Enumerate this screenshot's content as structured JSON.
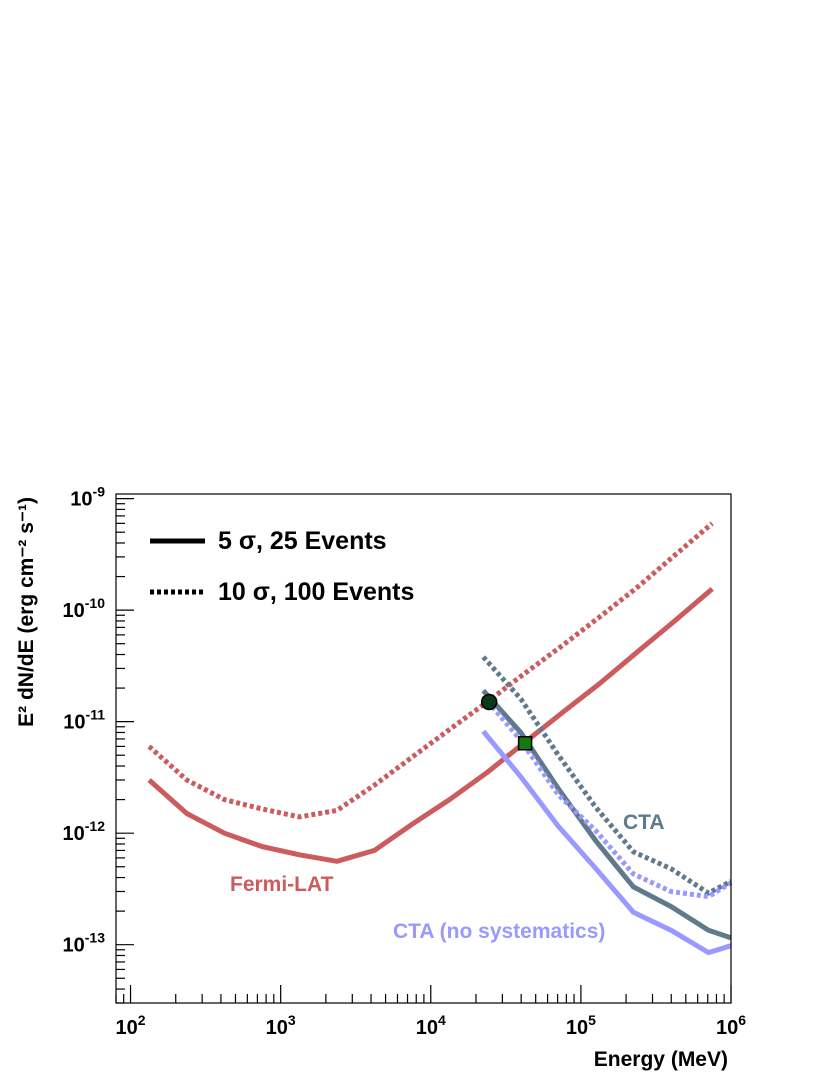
{
  "chart_data": {
    "type": "line",
    "xlabel": "Energy (MeV)",
    "ylabel": "E² dN/dE (erg cm⁻² s⁻¹)",
    "xscale": "log",
    "yscale": "log",
    "xlim": [
      80,
      1000000
    ],
    "ylim": [
      3e-14,
      1.1e-09
    ],
    "x_ticks": [
      {
        "value": 100,
        "base": "10",
        "exp": "2"
      },
      {
        "value": 1000,
        "base": "10",
        "exp": "3"
      },
      {
        "value": 10000,
        "base": "10",
        "exp": "4"
      },
      {
        "value": 100000,
        "base": "10",
        "exp": "5"
      },
      {
        "value": 1000000,
        "base": "10",
        "exp": "6"
      }
    ],
    "y_ticks": [
      {
        "value": 1e-13,
        "base": "10",
        "exp": "-13"
      },
      {
        "value": 1e-12,
        "base": "10",
        "exp": "-12"
      },
      {
        "value": 1e-11,
        "base": "10",
        "exp": "-11"
      },
      {
        "value": 1e-10,
        "base": "10",
        "exp": "-10"
      },
      {
        "value": 1e-09,
        "base": "10",
        "exp": "-9"
      }
    ],
    "grid": false,
    "legend_position": "top-left",
    "legend": [
      {
        "style": "solid",
        "label": "5 σ, 25 Events"
      },
      {
        "style": "dotted",
        "label": "10 σ, 100 Events"
      }
    ],
    "annotations": [
      {
        "text": "Fermi-LAT",
        "color": "#cc5b5e"
      },
      {
        "text": "CTA",
        "color": "#5f7a8c"
      },
      {
        "text": "CTA (no systematics)",
        "color": "#9999ff"
      }
    ],
    "series": [
      {
        "group": "Fermi-LAT",
        "style": "solid",
        "color": "#cc5b5e",
        "x": [
          133,
          237,
          422,
          750,
          1334,
          2371,
          4217,
          7499,
          13335,
          23714,
          42170,
          74989,
          133352,
          237137,
          421696,
          749894
        ],
        "y": [
          3e-12,
          1.5e-12,
          1e-12,
          7.6e-13,
          6.4e-13,
          5.6e-13,
          7e-13,
          1.2e-12,
          2e-12,
          3.5e-12,
          6.5e-12,
          1.2e-11,
          2.2e-11,
          4.2e-11,
          8e-11,
          1.55e-10
        ]
      },
      {
        "group": "Fermi-LAT",
        "style": "dotted",
        "color": "#cc5b5e",
        "x": [
          133,
          237,
          422,
          750,
          1334,
          2371,
          4217,
          7499,
          13335,
          23714,
          42170,
          74989,
          133352,
          237137,
          421696,
          749894
        ],
        "y": [
          6e-12,
          3e-12,
          2e-12,
          1.65e-12,
          1.4e-12,
          1.6e-12,
          2.7e-12,
          4.8e-12,
          8.5e-12,
          1.5e-11,
          2.7e-11,
          4.8e-11,
          8.7e-11,
          1.6e-10,
          3.1e-10,
          6e-10
        ]
      },
      {
        "group": "CTA",
        "style": "solid",
        "color": "#5f7a8c",
        "x": [
          22387,
          39811,
          70795,
          125893,
          223872,
          398107,
          707946,
          1000000
        ],
        "y": [
          1.9e-11,
          8e-12,
          2.5e-12,
          8.5e-13,
          3.3e-13,
          2.2e-13,
          1.35e-13,
          1.15e-13
        ]
      },
      {
        "group": "CTA",
        "style": "dotted",
        "color": "#5f7a8c",
        "x": [
          22387,
          39811,
          70795,
          125893,
          223872,
          398107,
          707946,
          1000000
        ],
        "y": [
          3.8e-11,
          1.6e-11,
          5e-12,
          1.7e-12,
          6.8e-13,
          4.8e-13,
          2.9e-13,
          3.7e-13
        ]
      },
      {
        "group": "CTA (no systematics)",
        "style": "solid",
        "color": "#9999ff",
        "x": [
          22387,
          39811,
          70795,
          125893,
          223872,
          398107,
          707946,
          1000000
        ],
        "y": [
          8.2e-12,
          3.2e-12,
          1.15e-12,
          4.8e-13,
          1.95e-13,
          1.35e-13,
          8.5e-14,
          9.8e-14
        ]
      },
      {
        "group": "CTA (no systematics)",
        "style": "dotted",
        "color": "#9999ff",
        "x": [
          22387,
          39811,
          70795,
          125893,
          223872,
          398107,
          707946,
          1000000
        ],
        "y": [
          1.7e-11,
          6.8e-12,
          2.2e-12,
          1.05e-12,
          4.3e-13,
          3e-13,
          2.7e-13,
          3.6e-13
        ]
      }
    ],
    "markers": [
      {
        "shape": "circle",
        "color": "#0a3a18",
        "x": 24500,
        "y": 1.5e-11
      },
      {
        "shape": "square",
        "color": "#137a13",
        "x": 42500,
        "y": 6.4e-12
      }
    ]
  }
}
